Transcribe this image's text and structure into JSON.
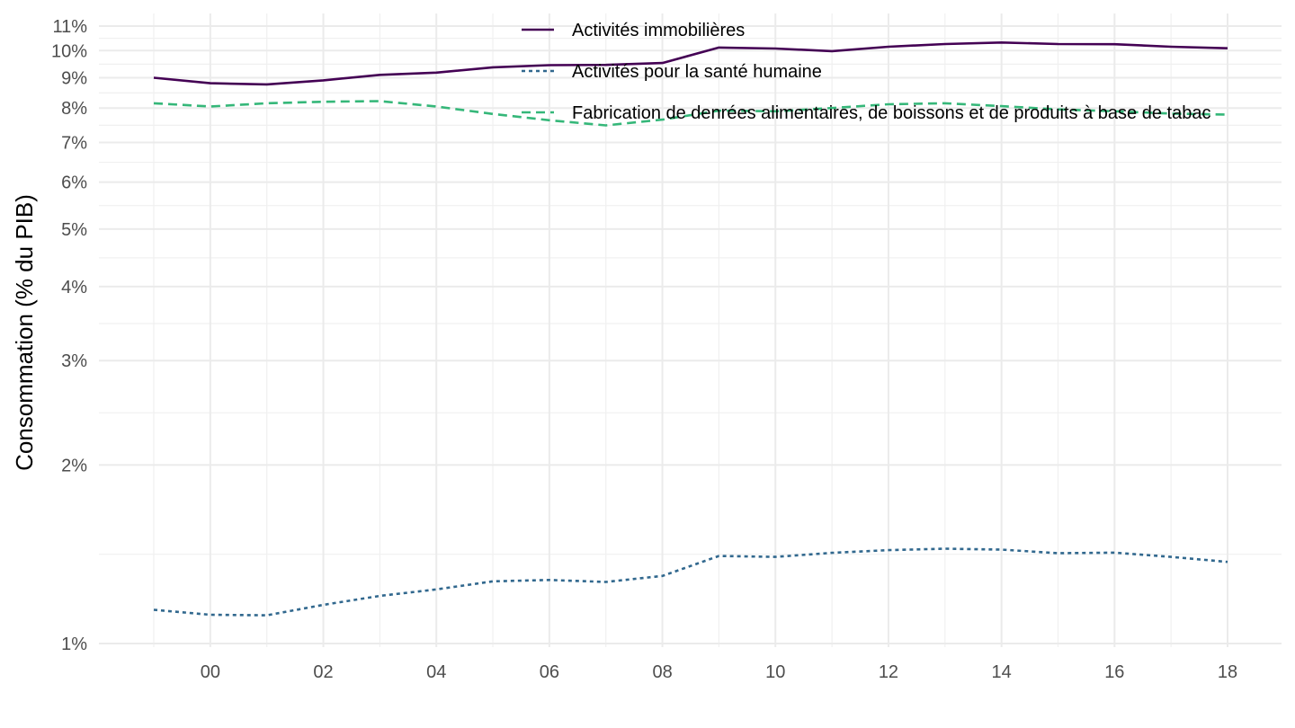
{
  "chart_data": {
    "type": "line",
    "title": "",
    "xlabel": "",
    "ylabel": "Consommation (% du PIB)",
    "y_scale": "log",
    "ylim": [
      0.01,
      0.11
    ],
    "xlim": [
      1998.6,
      2018.9
    ],
    "grid": true,
    "legend_position": "top-center",
    "x": [
      1999,
      2000,
      2001,
      2002,
      2003,
      2004,
      2005,
      2006,
      2007,
      2008,
      2009,
      2010,
      2011,
      2012,
      2013,
      2014,
      2015,
      2016,
      2017,
      2018
    ],
    "x_ticks": [
      2000,
      2002,
      2004,
      2006,
      2008,
      2010,
      2012,
      2014,
      2016,
      2018
    ],
    "x_tick_labels": [
      "00",
      "02",
      "04",
      "06",
      "08",
      "10",
      "12",
      "14",
      "16",
      "18"
    ],
    "y_ticks": [
      0.01,
      0.02,
      0.03,
      0.04,
      0.05,
      0.06,
      0.07,
      0.08,
      0.09,
      0.1,
      0.11
    ],
    "y_tick_labels": [
      "1%",
      "2%",
      "3%",
      "4%",
      "5%",
      "6%",
      "7%",
      "8%",
      "9%",
      "10%",
      "11%"
    ],
    "series": [
      {
        "name": "Activités immobilières",
        "color": "#440154",
        "dash": "solid",
        "values": [
          0.09,
          0.0881,
          0.0877,
          0.0891,
          0.091,
          0.0918,
          0.0937,
          0.0945,
          0.0946,
          0.0953,
          0.1012,
          0.1008,
          0.0998,
          0.1015,
          0.1026,
          0.1032,
          0.1026,
          0.1025,
          0.1015,
          0.1009
        ]
      },
      {
        "name": "Activités pour la santé humaine",
        "color": "#31688e",
        "dash": "dotted",
        "values": [
          0.0114,
          0.01118,
          0.01116,
          0.01162,
          0.01203,
          0.01234,
          0.01273,
          0.0128,
          0.0127,
          0.013,
          0.01405,
          0.014,
          0.01422,
          0.01437,
          0.01445,
          0.0144,
          0.0142,
          0.01423,
          0.014,
          0.01373
        ]
      },
      {
        "name": "Fabrication de denrées alimentaires, de boissons et de produits à base de tabac",
        "color": "#35b779",
        "dash": "dashed",
        "values": [
          0.0815,
          0.0805,
          0.0815,
          0.082,
          0.0822,
          0.0805,
          0.0782,
          0.0763,
          0.0748,
          0.0765,
          0.0792,
          0.079,
          0.08,
          0.0812,
          0.0815,
          0.0806,
          0.0796,
          0.079,
          0.0783,
          0.078
        ]
      }
    ]
  }
}
